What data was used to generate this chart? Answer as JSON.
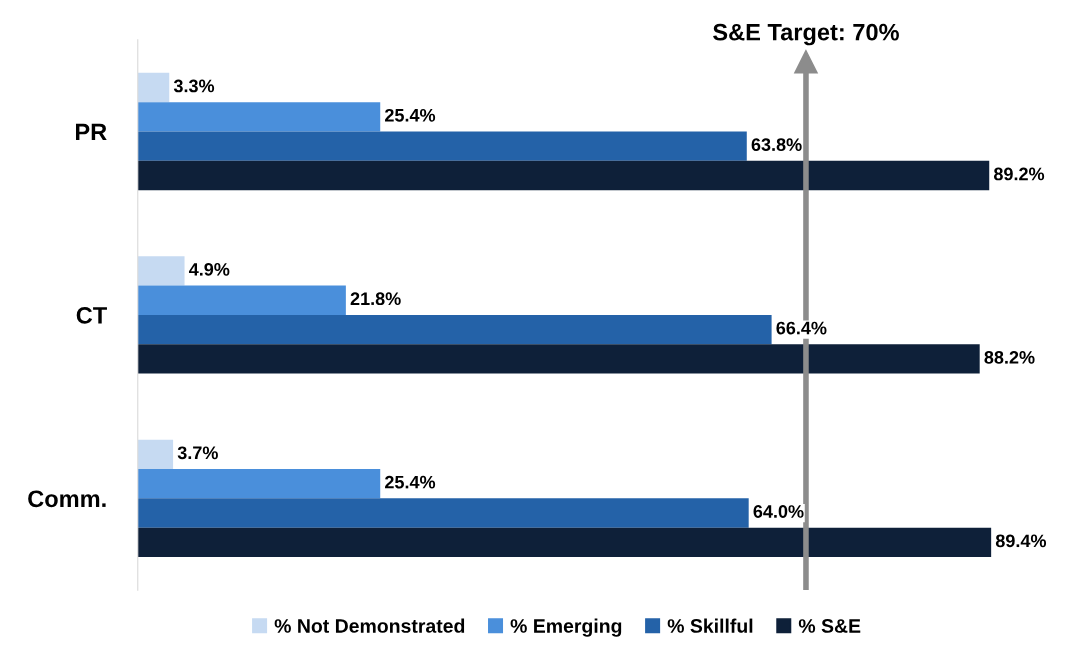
{
  "chart_data": {
    "type": "bar",
    "orientation": "horizontal",
    "categories": [
      "PR",
      "CT",
      "Comm."
    ],
    "series": [
      {
        "name": "% Not Demonstrated",
        "color": "#c6daf2",
        "values": [
          3.3,
          4.9,
          3.7
        ],
        "value_labels": [
          "3.3%",
          "4.9%",
          "3.7%"
        ]
      },
      {
        "name": "% Emerging",
        "color": "#4a8fdb",
        "values": [
          25.4,
          21.8,
          25.4
        ],
        "value_labels": [
          "25.4%",
          "21.8%",
          "25.4%"
        ]
      },
      {
        "name": "% Skillful",
        "color": "#2462a8",
        "values": [
          63.8,
          66.4,
          64.0
        ],
        "value_labels": [
          "63.8%",
          "66.4%",
          "64.0%"
        ]
      },
      {
        "name": "% S&E",
        "color": "#0e2039",
        "values": [
          89.2,
          88.2,
          89.4
        ],
        "value_labels": [
          "89.2%",
          "88.2%",
          "89.4%"
        ]
      }
    ],
    "ref_lines": [
      {
        "axis": "x",
        "value": 70,
        "label": "S&E Target: 70%",
        "color": "#8c8c8c"
      }
    ],
    "legend": "bottom",
    "grid": false
  }
}
